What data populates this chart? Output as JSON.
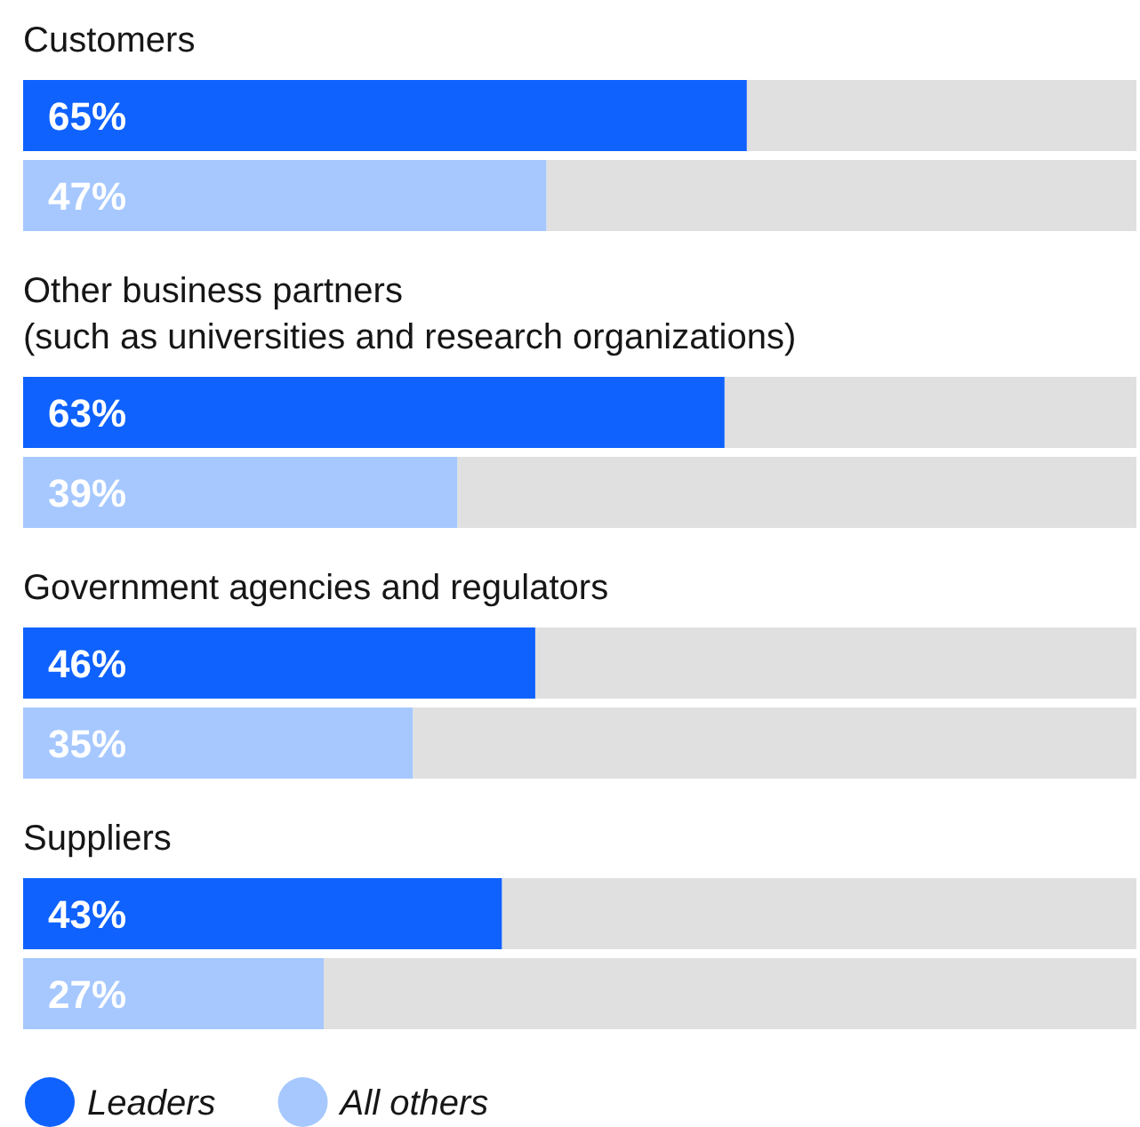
{
  "chart_data": {
    "type": "bar",
    "orientation": "horizontal",
    "categories": [
      "Customers",
      "Other business partners\n(such as universities and research organizations)",
      "Government agencies and regulators",
      "Suppliers"
    ],
    "series": [
      {
        "name": "Leaders",
        "color": "#0f62fe",
        "values": [
          65,
          63,
          46,
          43
        ],
        "value_labels": [
          "65%",
          "63%",
          "46%",
          "43%"
        ]
      },
      {
        "name": "All others",
        "color": "#a6c8ff",
        "values": [
          47,
          39,
          35,
          27
        ],
        "value_labels": [
          "47%",
          "39%",
          "35%",
          "27%"
        ]
      }
    ],
    "xlim": [
      0,
      100
    ],
    "tick_labels": false,
    "legend": "bottom left"
  }
}
